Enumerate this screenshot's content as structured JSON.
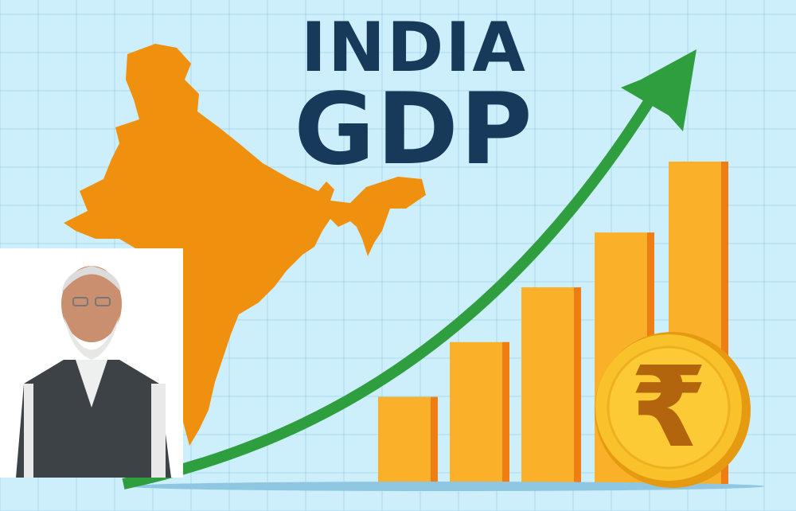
{
  "title": {
    "line1": "INDIA",
    "line2": "GDP"
  },
  "colors": {
    "background": "#cdeefb",
    "grid": "#a9d9ee",
    "title": "#183a5a",
    "map": "#f0900f",
    "bar_front": "#fbb02a",
    "bar_side": "#ee7d14",
    "arrow": "#2e9e3e",
    "coin": "#f9c22a",
    "rupee_symbol": "#b3650d"
  },
  "icons": {
    "coin": "rupee-coin-icon",
    "arrow": "growth-arrow-icon",
    "map": "india-map"
  },
  "bars_relative_heights": [
    0.27,
    0.44,
    0.61,
    0.78,
    1.0
  ]
}
